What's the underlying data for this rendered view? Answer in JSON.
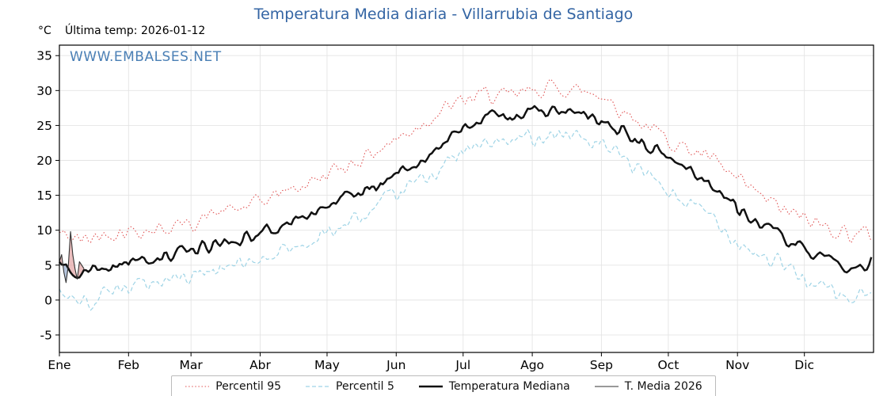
{
  "title": "Temperatura Media diaria - Villarrubia de Santiago",
  "header": {
    "units": "°C",
    "last_temp": "Última temp: 2026-01-12"
  },
  "watermark": "WWW.EMBALSES.NET",
  "colors": {
    "title": "#3465a4",
    "watermark": "#4a7fb5",
    "p95": "#e05252",
    "p5": "#9fd4e6",
    "median": "#111111",
    "t2026": "#333333",
    "grid": "#e4e4e4",
    "frame": "#000000",
    "fill_above": "#e09a9a",
    "fill_below": "#8fa8cc"
  },
  "chart_data": {
    "type": "line",
    "title": "Temperatura Media diaria - Villarrubia de Santiago",
    "ylabel": "°C",
    "ylim": [
      -7.5,
      36.5
    ],
    "yticks": [
      -5,
      0,
      5,
      10,
      15,
      20,
      25,
      30,
      35
    ],
    "days_in_year": 365,
    "months": [
      {
        "label": "Ene",
        "start": 0
      },
      {
        "label": "Feb",
        "start": 31
      },
      {
        "label": "Mar",
        "start": 59
      },
      {
        "label": "Abr",
        "start": 90
      },
      {
        "label": "May",
        "start": 120
      },
      {
        "label": "Jun",
        "start": 151
      },
      {
        "label": "Jul",
        "start": 181
      },
      {
        "label": "Ago",
        "start": 212
      },
      {
        "label": "Sep",
        "start": 243
      },
      {
        "label": "Oct",
        "start": 273
      },
      {
        "label": "Nov",
        "start": 304
      },
      {
        "label": "Dic",
        "start": 334
      }
    ],
    "noise_seed": 42,
    "anchor_days": [
      0,
      10,
      20,
      31,
      41,
      51,
      59,
      70,
      80,
      90,
      100,
      110,
      120,
      130,
      140,
      151,
      161,
      171,
      181,
      191,
      201,
      212,
      222,
      232,
      243,
      253,
      263,
      273,
      283,
      293,
      304,
      314,
      324,
      334,
      344,
      354,
      364
    ],
    "series": [
      {
        "name": "Percentil 95",
        "style": "dotted",
        "color_key": "p95",
        "noise": 0.9,
        "anchor_values": [
          9.5,
          8.5,
          9.5,
          10,
          10,
          10.5,
          11,
          12.5,
          13,
          14,
          15.5,
          16.5,
          18,
          19.5,
          21,
          23,
          25,
          27,
          28.5,
          29.5,
          29,
          30,
          30.5,
          30,
          29.5,
          27,
          25,
          23,
          21.5,
          20,
          17,
          15,
          13,
          11.5,
          10.5,
          9.5,
          9.5
        ]
      },
      {
        "name": "Percentil 5",
        "style": "dashed",
        "color_key": "p5",
        "noise": 1.0,
        "anchor_values": [
          1.5,
          -0.5,
          1,
          2,
          2.5,
          3,
          3.5,
          4.5,
          5,
          6,
          7,
          8,
          9.5,
          11,
          12.5,
          15,
          17,
          19,
          21,
          22.5,
          22.5,
          23.5,
          24,
          23.5,
          22,
          20,
          18,
          15.5,
          13.5,
          12,
          8.5,
          6.5,
          5,
          3,
          1.5,
          0,
          1
        ]
      },
      {
        "name": "Temperatura Mediana",
        "style": "thick",
        "color_key": "median",
        "noise": 0.7,
        "anchor_values": [
          5,
          4,
          4.5,
          5.5,
          6,
          6.5,
          7,
          8,
          8.5,
          9.5,
          10.5,
          12,
          13.5,
          15,
          15.5,
          18,
          20,
          22,
          24.5,
          26,
          26.5,
          27,
          27,
          26.5,
          25.5,
          24,
          22,
          20.5,
          18.5,
          16.5,
          13,
          11,
          9,
          7,
          5.5,
          4.5,
          5.5
        ]
      },
      {
        "name": "T. Media 2026",
        "style": "thin",
        "color_key": "t2026",
        "noise": 0,
        "days": [
          0,
          1,
          2,
          3,
          4,
          5,
          6,
          7,
          8,
          9,
          10,
          11
        ],
        "values": [
          5.5,
          6.5,
          4,
          2.5,
          5,
          9.8,
          6.5,
          4.5,
          3,
          5.5,
          5,
          4.5
        ]
      }
    ],
    "legend": [
      "Percentil 95",
      "Percentil 5",
      "Temperatura Mediana",
      "T. Media 2026"
    ]
  }
}
